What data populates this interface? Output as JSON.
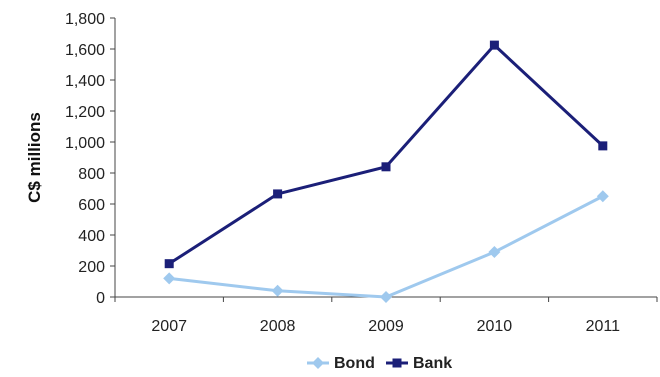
{
  "chart_data": {
    "type": "line",
    "categories": [
      "2007",
      "2008",
      "2009",
      "2010",
      "2011"
    ],
    "series": [
      {
        "name": "Bond",
        "values": [
          120,
          40,
          0,
          290,
          650
        ],
        "color": "#9fc9ee",
        "marker": "diamond"
      },
      {
        "name": "Bank",
        "values": [
          215,
          665,
          840,
          1625,
          975
        ],
        "color": "#1b1f78",
        "marker": "square"
      }
    ],
    "ylabel": "C$ millions",
    "xlabel": "",
    "ylim": [
      0,
      1800
    ],
    "yticks": [
      0,
      200,
      400,
      600,
      800,
      1000,
      1200,
      1400,
      1600,
      1800
    ],
    "ytick_labels": [
      "0",
      "200",
      "400",
      "600",
      "800",
      "1,000",
      "1,200",
      "1,400",
      "1,600",
      "1,800"
    ],
    "grid": false,
    "legend": "bottom"
  }
}
